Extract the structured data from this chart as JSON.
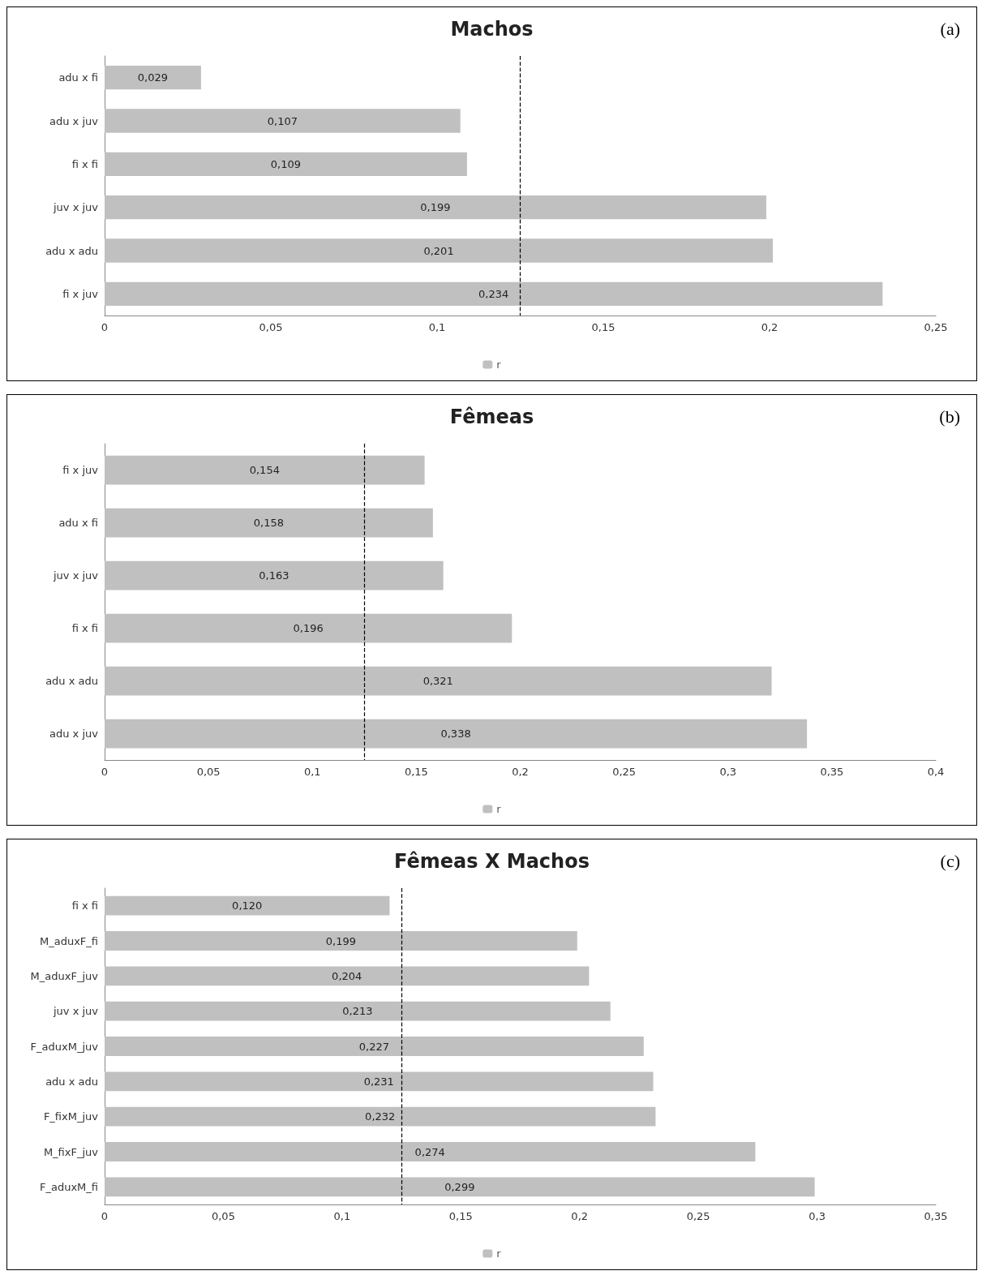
{
  "chart_data": [
    {
      "type": "bar",
      "orientation": "horizontal",
      "title": "Machos",
      "annotations": [
        "(a)"
      ],
      "categories": [
        "adu x fi",
        "adu x juv",
        "fi x fi",
        "juv x juv",
        "adu x adu",
        "fi x juv"
      ],
      "series": [
        {
          "name": "r",
          "color": "#c0c0c0",
          "values": [
            0.029,
            0.107,
            0.109,
            0.199,
            0.201,
            0.234
          ],
          "value_labels": [
            "0,029",
            "0,107",
            "0,109",
            "0,199",
            "0,201",
            "0,234"
          ]
        }
      ],
      "xlim": [
        0,
        0.25
      ],
      "xticks": [
        {
          "value": 0,
          "label": "0"
        },
        {
          "value": 0.05,
          "label": "0,05"
        },
        {
          "value": 0.1,
          "label": "0,1"
        },
        {
          "value": 0.15,
          "label": "0,15"
        },
        {
          "value": 0.2,
          "label": "0,2"
        },
        {
          "value": 0.25,
          "label": "0,25"
        }
      ],
      "ref_lines": [
        {
          "axis": "x",
          "value": 0.125,
          "line_style": "dashed",
          "color": "#000000"
        }
      ],
      "legend": "bottom",
      "grid": false
    },
    {
      "type": "bar",
      "orientation": "horizontal",
      "title": "Fêmeas",
      "annotations": [
        "(b)"
      ],
      "categories": [
        "fi x juv",
        "adu x fi",
        "juv x juv",
        "fi x fi",
        "adu x adu",
        "adu x juv"
      ],
      "series": [
        {
          "name": "r",
          "color": "#c0c0c0",
          "values": [
            0.154,
            0.158,
            0.163,
            0.196,
            0.321,
            0.338
          ],
          "value_labels": [
            "0,154",
            "0,158",
            "0,163",
            "0,196",
            "0,321",
            "0,338"
          ]
        }
      ],
      "xlim": [
        0,
        0.4
      ],
      "xticks": [
        {
          "value": 0,
          "label": "0"
        },
        {
          "value": 0.05,
          "label": "0,05"
        },
        {
          "value": 0.1,
          "label": "0,1"
        },
        {
          "value": 0.15,
          "label": "0,15"
        },
        {
          "value": 0.2,
          "label": "0,2"
        },
        {
          "value": 0.25,
          "label": "0,25"
        },
        {
          "value": 0.3,
          "label": "0,3"
        },
        {
          "value": 0.35,
          "label": "0,35"
        },
        {
          "value": 0.4,
          "label": "0,4"
        }
      ],
      "ref_lines": [
        {
          "axis": "x",
          "value": 0.125,
          "line_style": "dashed",
          "color": "#000000"
        }
      ],
      "legend": "bottom",
      "grid": false
    },
    {
      "type": "bar",
      "orientation": "horizontal",
      "title": "Fêmeas X Machos",
      "annotations": [
        "(c)"
      ],
      "categories": [
        "fi x fi",
        "M_aduxF_fi",
        "M_aduxF_juv",
        "juv x juv",
        "F_aduxM_juv",
        "adu x adu",
        "F_fixM_juv",
        "M_fixF_juv",
        "F_aduxM_fi"
      ],
      "series": [
        {
          "name": "r",
          "color": "#c0c0c0",
          "values": [
            0.12,
            0.199,
            0.204,
            0.213,
            0.227,
            0.231,
            0.232,
            0.274,
            0.299
          ],
          "value_labels": [
            "0,120",
            "0,199",
            "0,204",
            "0,213",
            "0,227",
            "0,231",
            "0,232",
            "0,274",
            "0,299"
          ]
        }
      ],
      "xlim": [
        0,
        0.35
      ],
      "xticks": [
        {
          "value": 0,
          "label": "0"
        },
        {
          "value": 0.05,
          "label": "0,05"
        },
        {
          "value": 0.1,
          "label": "0,1"
        },
        {
          "value": 0.15,
          "label": "0,15"
        },
        {
          "value": 0.2,
          "label": "0,2"
        },
        {
          "value": 0.25,
          "label": "0,25"
        },
        {
          "value": 0.3,
          "label": "0,3"
        },
        {
          "value": 0.35,
          "label": "0,35"
        }
      ],
      "ref_lines": [
        {
          "axis": "x",
          "value": 0.125,
          "line_style": "dashed",
          "color": "#000000"
        }
      ],
      "legend": "bottom",
      "grid": false
    }
  ]
}
